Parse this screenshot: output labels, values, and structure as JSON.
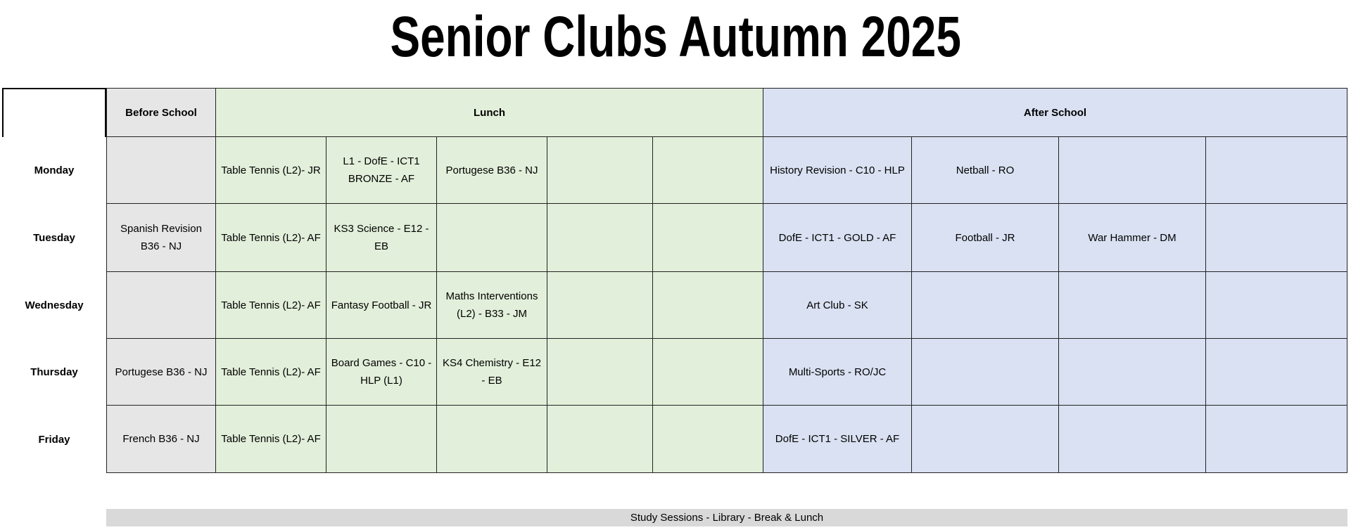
{
  "title": "Senior Clubs Autumn 2025",
  "headers": {
    "before_school": "Before School",
    "lunch": "Lunch",
    "after_school": "After School"
  },
  "colors": {
    "before_school": "#e7e6e6",
    "lunch": "#e2efda",
    "after_school": "#d9e1f2",
    "study_bar": "#d9d9d9"
  },
  "days": [
    {
      "day": "Monday",
      "before": "",
      "lunch": [
        "Table Tennis (L2)- JR",
        "L1 - DofE - ICT1 BRONZE - AF",
        "Portugese      B36 - NJ",
        "",
        ""
      ],
      "after": [
        "History Revision - C10 - HLP",
        "Netball - RO",
        "",
        ""
      ]
    },
    {
      "day": "Tuesday",
      "before": "Spanish Revision B36 - NJ",
      "lunch": [
        "Table Tennis (L2)- AF",
        "KS3 Science - E12 - EB",
        "",
        "",
        ""
      ],
      "after": [
        "DofE - ICT1 - GOLD - AF",
        "Football - JR",
        "War Hammer - DM",
        ""
      ]
    },
    {
      "day": "Wednesday",
      "before": "",
      "lunch": [
        "Table Tennis (L2)- AF",
        "Fantasy Football - JR",
        "Maths Interventions (L2) - B33 - JM",
        "",
        ""
      ],
      "after": [
        "Art Club - SK",
        "",
        "",
        ""
      ]
    },
    {
      "day": "Thursday",
      "before": "Portugese B36 - NJ",
      "lunch": [
        "Table Tennis (L2)- AF",
        "Board Games - C10 - HLP (L1)",
        "KS4 Chemistry - E12 - EB",
        "",
        ""
      ],
      "after": [
        "Multi-Sports - RO/JC",
        "",
        "",
        ""
      ]
    },
    {
      "day": "Friday",
      "before": "French B36 - NJ",
      "lunch": [
        "Table Tennis (L2)- AF",
        "",
        "",
        "",
        ""
      ],
      "after": [
        "DofE - ICT1 - SILVER - AF",
        "",
        "",
        ""
      ]
    }
  ],
  "study_sessions": "Study Sessions - Library - Break & Lunch"
}
